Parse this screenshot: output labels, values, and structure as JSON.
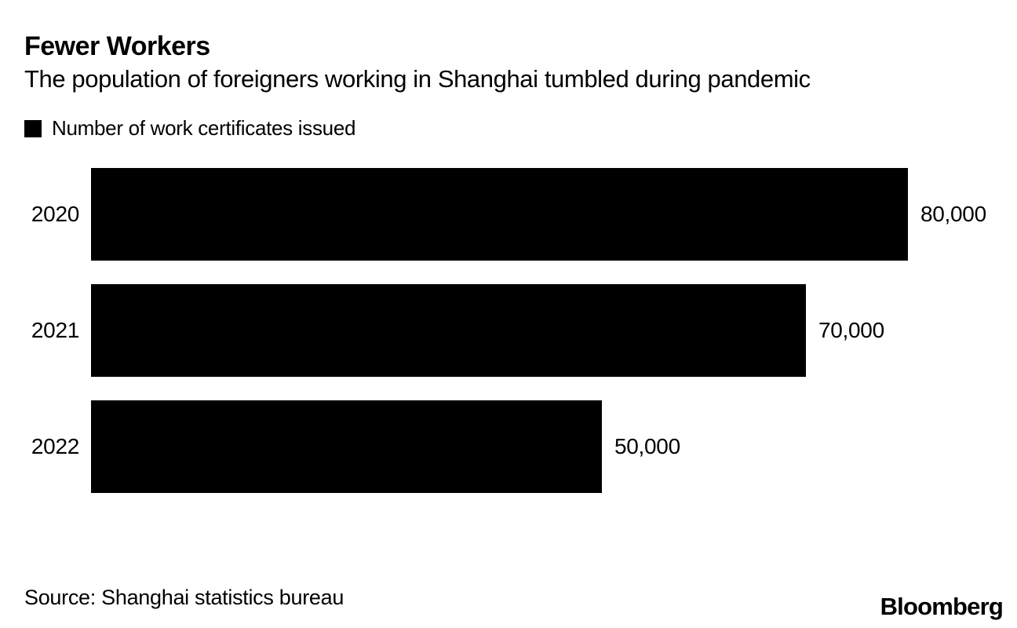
{
  "header": {
    "title": "Fewer Workers",
    "subtitle": "The population of foreigners working in Shanghai tumbled during pandemic"
  },
  "legend": {
    "swatch_icon": "black-square-swatch",
    "swatch_color": "#000000",
    "label": "Number of work certificates issued"
  },
  "chart_data": {
    "type": "bar",
    "orientation": "horizontal",
    "title": "Fewer Workers",
    "subtitle": "The population of foreigners working in Shanghai tumbled during pandemic",
    "series_name": "Number of work certificates issued",
    "categories": [
      "2020",
      "2021",
      "2022"
    ],
    "values": [
      80000,
      70000,
      50000
    ],
    "value_labels": [
      "80,000",
      "70,000",
      "50,000"
    ],
    "xlabel": "",
    "ylabel": "",
    "xlim": [
      0,
      80000
    ],
    "bar_color": "#000000",
    "grid": false,
    "legend_position": "top-left",
    "value_label_position": "outside-end"
  },
  "footer": {
    "source": "Source: Shanghai statistics bureau",
    "logo_text": "Bloomberg"
  }
}
